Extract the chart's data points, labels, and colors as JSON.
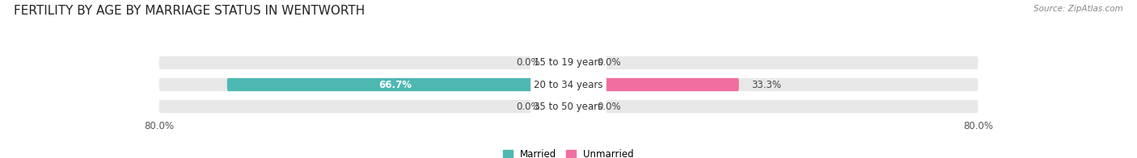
{
  "title": "FERTILITY BY AGE BY MARRIAGE STATUS IN WENTWORTH",
  "source": "Source: ZipAtlas.com",
  "categories": [
    "15 to 19 years",
    "20 to 34 years",
    "35 to 50 years"
  ],
  "married_values": [
    0.0,
    66.7,
    0.0
  ],
  "unmarried_values": [
    0.0,
    33.3,
    0.0
  ],
  "married_color": "#4db8b2",
  "unmarried_color": "#f06fa0",
  "married_color_light": "#a8dbd9",
  "unmarried_color_light": "#f9b8ce",
  "bar_bg_color": "#e8e8e8",
  "bar_bg_color2": "#f0f0f0",
  "max_val": 80.0,
  "bar_height": 0.6,
  "title_fontsize": 11,
  "label_fontsize": 8.5,
  "axis_label_fontsize": 8.5,
  "category_fontsize": 8.5,
  "background_color": "#ffffff",
  "legend_married": "Married",
  "legend_unmarried": "Unmarried",
  "label_color_dark": "#444444",
  "label_color_white": "#ffffff",
  "label_color_light": "#888888"
}
